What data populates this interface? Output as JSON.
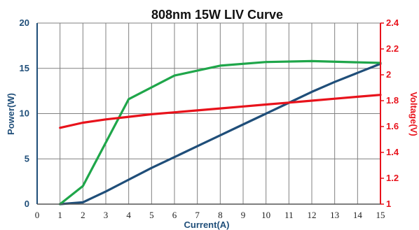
{
  "chart_data": {
    "type": "line",
    "title": "808nm 15W LIV Curve",
    "xlabel": "Current(A)",
    "ylabel_left": "Power(W)",
    "ylabel_right": "Voltage(V)",
    "xlim": [
      0,
      15
    ],
    "ylim_left": [
      0,
      20
    ],
    "ylim_right": [
      1,
      2.4
    ],
    "x_ticks": [
      0,
      1,
      2,
      3,
      4,
      5,
      6,
      7,
      8,
      9,
      10,
      11,
      12,
      13,
      14,
      15
    ],
    "y_left_ticks": [
      0,
      5,
      10,
      15,
      20
    ],
    "y_right_ticks": [
      "1",
      "1.2",
      "1.4",
      "1.6",
      "1.8",
      "2",
      "2.2",
      "2.4"
    ],
    "grid": {
      "vertical": true,
      "horizontal": true
    },
    "colors": {
      "power": "#1f4e79",
      "efficiency": "#1fa64a",
      "voltage": "#e8121b",
      "grid": "#808080",
      "left_axis": "#1f4e79",
      "right_axis": "#e8121b"
    },
    "series": [
      {
        "axis": "left",
        "color": "#1f4e79",
        "x": [
          1,
          2,
          3,
          4,
          5,
          6,
          7,
          8,
          9,
          10,
          11,
          12,
          13,
          14,
          15
        ],
        "y": [
          0,
          0.2,
          1.4,
          2.7,
          4.0,
          5.2,
          6.4,
          7.6,
          8.8,
          10.0,
          11.2,
          12.4,
          13.5,
          14.5,
          15.5
        ]
      },
      {
        "axis": "left",
        "color": "#1fa64a",
        "x": [
          1,
          2,
          4,
          6,
          8,
          10,
          12,
          15
        ],
        "y": [
          0,
          2,
          11.6,
          14.2,
          15.3,
          15.7,
          15.8,
          15.6
        ]
      },
      {
        "axis": "right",
        "color": "#e8121b",
        "x": [
          1,
          2,
          3,
          4,
          5,
          6,
          7,
          8,
          9,
          10,
          11,
          12,
          13,
          14,
          15
        ],
        "y": [
          1.59,
          1.63,
          1.655,
          1.675,
          1.695,
          1.71,
          1.725,
          1.74,
          1.755,
          1.77,
          1.785,
          1.8,
          1.815,
          1.83,
          1.845
        ]
      }
    ]
  }
}
